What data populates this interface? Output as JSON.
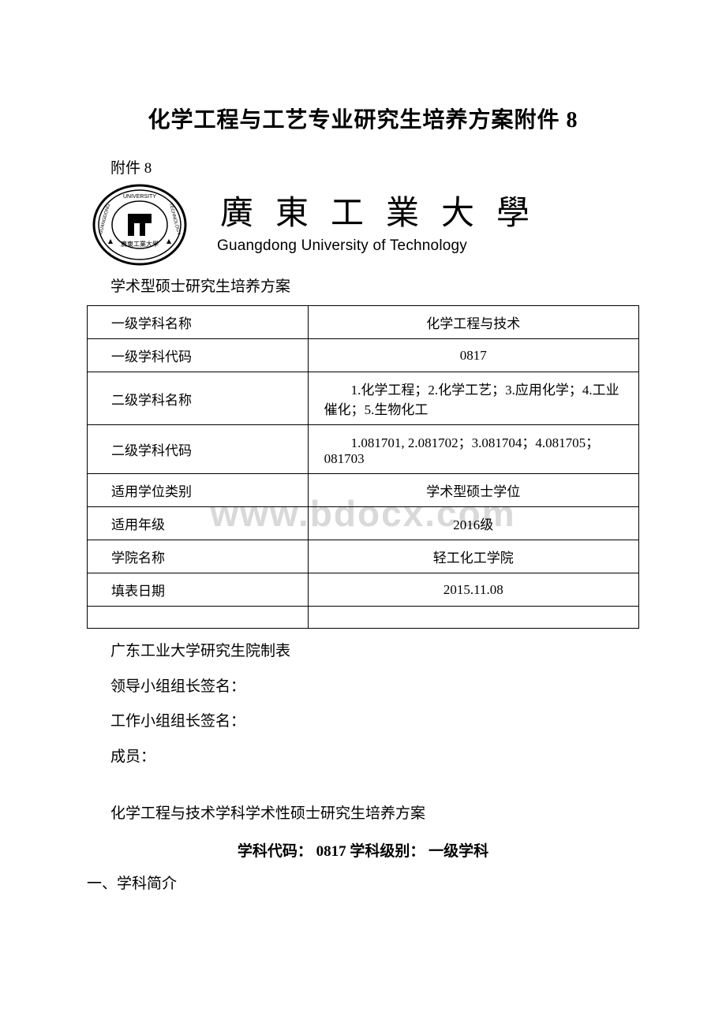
{
  "title": "化学工程与工艺专业研究生培养方案附件 8",
  "attachment_label": "附件 8",
  "university": {
    "cn": "廣東工業大學",
    "en": "Guangdong University of Technology"
  },
  "subtitle": "学术型硕士研究生培养方案",
  "table": {
    "rows": [
      {
        "label": "一级学科名称",
        "value": "化学工程与技术",
        "align": "center",
        "h": "short"
      },
      {
        "label": "一级学科代码",
        "value": "0817",
        "align": "center",
        "h": "short"
      },
      {
        "label": "二级学科名称",
        "value": "　　1.化学工程；2.化学工艺；3.应用化学；4.工业催化；5.生物化工",
        "align": "left",
        "h": "tall"
      },
      {
        "label": "二级学科代码",
        "value": "　　1.081701, 2.081702；3.081704；4.081705；081703",
        "align": "left",
        "h": "tall"
      },
      {
        "label": "适用学位类别",
        "value": "学术型硕士学位",
        "align": "center",
        "h": "short"
      },
      {
        "label": "适用年级",
        "value": "2016级",
        "align": "center",
        "h": "short"
      },
      {
        "label": "学院名称",
        "value": "轻工化工学院",
        "align": "center",
        "h": "short"
      },
      {
        "label": "填表日期",
        "value": "2015.11.08",
        "align": "center",
        "h": "short"
      }
    ]
  },
  "watermark": "www.bdocx.com",
  "footer": {
    "maker": "广东工业大学研究生院制表",
    "leader_sign": "领导小组组长签名：",
    "work_sign": "工作小组组长签名：",
    "members": "成员：",
    "program_title": "化学工程与技术学科学术性硕士研究生培养方案",
    "code_line": "学科代码： 0817  学科级别： 一级学科",
    "section1": "一、学科简介"
  }
}
